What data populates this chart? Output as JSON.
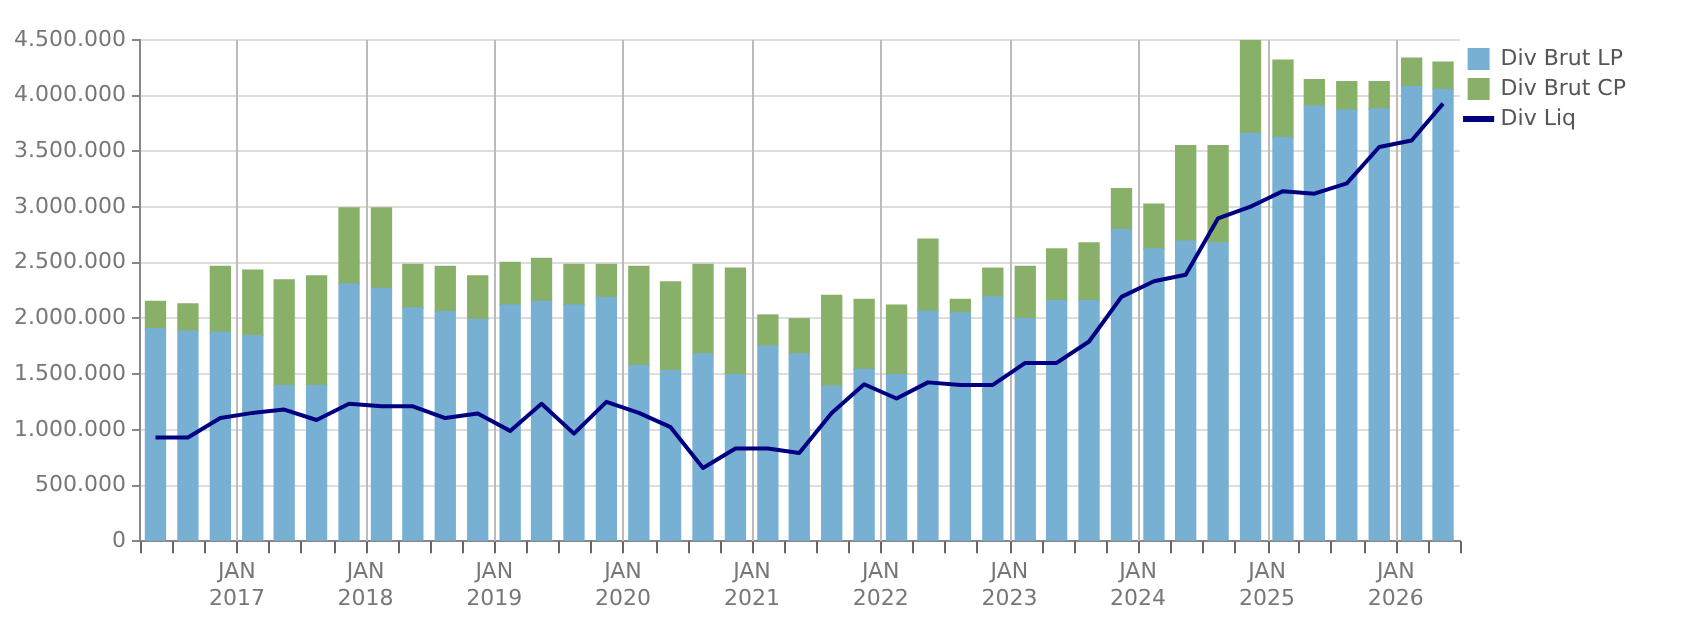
{
  "chart_data": {
    "type": "bar",
    "stacked": true,
    "x": [
      "2016-05-15",
      "2016-08-15",
      "2016-11-15",
      "2017-02-15",
      "2017-05-15",
      "2017-08-15",
      "2017-11-15",
      "2018-02-15",
      "2018-05-15",
      "2018-08-15",
      "2018-11-15",
      "2019-02-15",
      "2019-05-15",
      "2019-08-15",
      "2019-11-15",
      "2020-02-15",
      "2020-05-15",
      "2020-08-15",
      "2020-11-15",
      "2021-02-15",
      "2021-05-15",
      "2021-08-15",
      "2021-11-15",
      "2022-02-15",
      "2022-05-15",
      "2022-08-15",
      "2022-11-15",
      "2023-02-15",
      "2023-05-15",
      "2023-08-15",
      "2023-11-15",
      "2024-02-15",
      "2024-05-15",
      "2024-08-15",
      "2024-11-15",
      "2025-02-15",
      "2025-05-15",
      "2025-08-15",
      "2025-11-15",
      "2026-02-15",
      "2026-05-15"
    ],
    "series": [
      {
        "name": "Div Brut LP",
        "color": "#77b0d3",
        "values": [
          1909000,
          1886000,
          1874000,
          1845000,
          1397000,
          1397000,
          2311000,
          2270000,
          2095000,
          2061000,
          1991000,
          2119000,
          2154000,
          2119000,
          2189000,
          1577000,
          1531000,
          1682000,
          1496000,
          1752000,
          1682000,
          1391000,
          1542000,
          1496000,
          2066000,
          2049000,
          2194000,
          1997000,
          2160000,
          2160000,
          2800000,
          2625000,
          2695000,
          2678000,
          3661000,
          3626000,
          3906000,
          3871000,
          3882000,
          4080000,
          4057000
        ]
      },
      {
        "name": "Div Brut CP",
        "color": "#88b068",
        "values": [
          245000,
          244000,
          594000,
          588000,
          949000,
          984000,
          681000,
          722000,
          390000,
          407000,
          390000,
          384000,
          384000,
          366000,
          296000,
          891000,
          797000,
          803000,
          955000,
          279000,
          315000,
          815000,
          629000,
          623000,
          646000,
          122000,
          257000,
          471000,
          465000,
          518000,
          366000,
          402000,
          856000,
          873000,
          839000,
          693000,
          238000,
          256000,
          245000,
          256000,
          244000
        ]
      },
      {
        "name": "Div Liq",
        "type": "line",
        "color": "#000080",
        "marker": "none",
        "line_style": "solid",
        "values": [
          931000,
          931000,
          1106000,
          1152000,
          1182000,
          1088000,
          1234000,
          1211000,
          1211000,
          1106000,
          1147000,
          990000,
          1234000,
          966000,
          1251000,
          1152000,
          1024000,
          658000,
          832000,
          832000,
          792000,
          1152000,
          1409000,
          1281000,
          1426000,
          1403000,
          1403000,
          1601000,
          1601000,
          1793000,
          2194000,
          2334000,
          2392000,
          2899000,
          3004000,
          3143000,
          3120000,
          3213000,
          3539000,
          3597000,
          3929000
        ]
      }
    ],
    "xlim": [
      "2016-04-01",
      "2026-07-01"
    ],
    "xticks": [
      {
        "value": "2016-04-01",
        "label": null
      },
      {
        "value": "2016-07-01",
        "label": null
      },
      {
        "value": "2016-10-01",
        "label": null
      },
      {
        "value": "2017-01-01",
        "label": "JAN 2017"
      },
      {
        "value": "2017-04-01",
        "label": null
      },
      {
        "value": "2017-07-01",
        "label": null
      },
      {
        "value": "2017-10-01",
        "label": null
      },
      {
        "value": "2018-01-01",
        "label": "JAN 2018"
      },
      {
        "value": "2018-04-01",
        "label": null
      },
      {
        "value": "2018-07-01",
        "label": null
      },
      {
        "value": "2018-10-01",
        "label": null
      },
      {
        "value": "2019-01-01",
        "label": "JAN 2019"
      },
      {
        "value": "2019-04-01",
        "label": null
      },
      {
        "value": "2019-07-01",
        "label": null
      },
      {
        "value": "2019-10-01",
        "label": null
      },
      {
        "value": "2020-01-01",
        "label": "JAN 2020"
      },
      {
        "value": "2020-04-01",
        "label": null
      },
      {
        "value": "2020-07-01",
        "label": null
      },
      {
        "value": "2020-10-01",
        "label": null
      },
      {
        "value": "2021-01-01",
        "label": "JAN 2021"
      },
      {
        "value": "2021-04-01",
        "label": null
      },
      {
        "value": "2021-07-01",
        "label": null
      },
      {
        "value": "2021-10-01",
        "label": null
      },
      {
        "value": "2022-01-01",
        "label": "JAN 2022"
      },
      {
        "value": "2022-04-01",
        "label": null
      },
      {
        "value": "2022-07-01",
        "label": null
      },
      {
        "value": "2022-10-01",
        "label": null
      },
      {
        "value": "2023-01-01",
        "label": "JAN 2023"
      },
      {
        "value": "2023-04-01",
        "label": null
      },
      {
        "value": "2023-07-01",
        "label": null
      },
      {
        "value": "2023-10-01",
        "label": null
      },
      {
        "value": "2024-01-01",
        "label": "JAN 2024"
      },
      {
        "value": "2024-04-01",
        "label": null
      },
      {
        "value": "2024-07-01",
        "label": null
      },
      {
        "value": "2024-10-01",
        "label": null
      },
      {
        "value": "2025-01-01",
        "label": "JAN 2025"
      },
      {
        "value": "2025-04-01",
        "label": null
      },
      {
        "value": "2025-07-01",
        "label": null
      },
      {
        "value": "2025-10-01",
        "label": null
      },
      {
        "value": "2026-01-01",
        "label": "JAN 2026"
      },
      {
        "value": "2026-04-01",
        "label": null
      },
      {
        "value": "2026-07-01",
        "label": null
      }
    ],
    "ylim": [
      0,
      4500000
    ],
    "yticks": [
      0,
      {
        "value": 500000,
        "label": "500.000"
      },
      {
        "value": 1000000,
        "label": "1.000.000"
      },
      {
        "value": 1500000,
        "label": "1.500.000"
      },
      {
        "value": 2000000,
        "label": "2.000.000"
      },
      {
        "value": 2500000,
        "label": "2.500.000"
      },
      {
        "value": 3000000,
        "label": "3.000.000"
      },
      {
        "value": 3500000,
        "label": "3.500.000"
      },
      {
        "value": 4000000,
        "label": "4.000.000"
      },
      {
        "value": 4500000,
        "label": "4.500.000"
      }
    ],
    "grid": true,
    "legend": "top right"
  }
}
